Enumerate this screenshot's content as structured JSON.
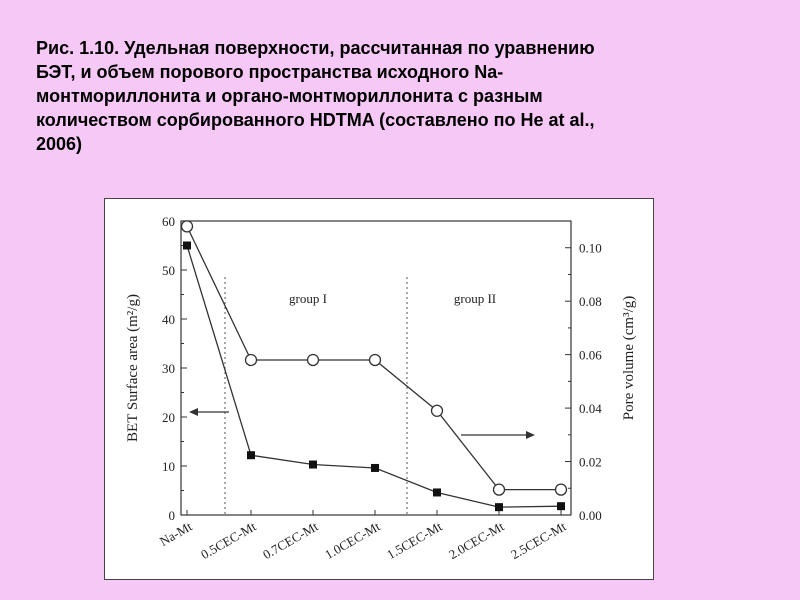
{
  "caption": {
    "lines": [
      "Рис. 1.10. Удельная поверхности, рассчитанная  по уравнению",
      "БЭТ, и объем порового  пространства   исходного  Na-",
      "монтмориллонита  и органо-монтмориллонита  с разным",
      "количеством  сорбированного  HDTMA (составлено по He at al.,",
      "2006)"
    ]
  },
  "chart_data": {
    "type": "line",
    "categories": [
      "Na-Mt",
      "0.5CEC-Mt",
      "0.7CEC-Mt",
      "1.0CEC-Mt",
      "1.5CEC-Mt",
      "2.0CEC-Mt",
      "2.5CEC-Mt"
    ],
    "series": [
      {
        "axis": "left",
        "marker": "filled-square",
        "values": [
          55,
          12.2,
          10.3,
          9.6,
          4.6,
          1.6,
          1.8
        ]
      },
      {
        "axis": "right",
        "marker": "open-circle",
        "values": [
          0.108,
          0.058,
          0.058,
          0.058,
          0.039,
          0.0095,
          0.0095
        ]
      }
    ],
    "y_left": {
      "label": "BET Surface area (m²/g)",
      "ylim": [
        0,
        60
      ],
      "ticks": [
        "0",
        "10",
        "20",
        "30",
        "40",
        "50",
        "60"
      ]
    },
    "y_right": {
      "label": "Pore volume (cm³/g)",
      "ylim": [
        0,
        0.11
      ],
      "ticks": [
        "0.00",
        "0.02",
        "0.04",
        "0.06",
        "0.08",
        "0.10"
      ]
    },
    "group_labels": [
      "group  I",
      "group  II"
    ],
    "arrows": [
      "left",
      "right"
    ],
    "grid": false
  }
}
